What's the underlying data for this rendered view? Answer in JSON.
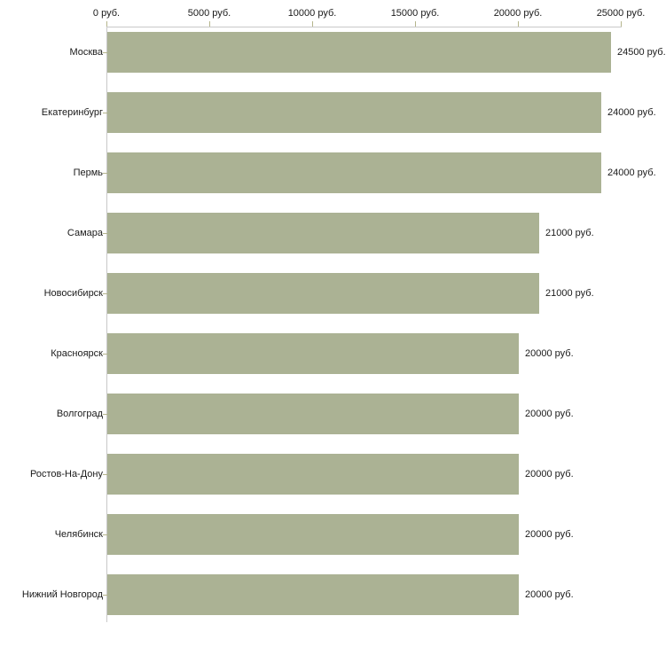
{
  "chart_data": {
    "type": "bar",
    "orientation": "horizontal",
    "title": "",
    "categories": [
      "Москва",
      "Екатеринбург",
      "Пермь",
      "Самара",
      "Новосибирск",
      "Красноярск",
      "Волгоград",
      "Ростов-На-Дону",
      "Челябинск",
      "Нижний Новгород"
    ],
    "values": [
      24500,
      24000,
      24000,
      21000,
      21000,
      20000,
      20000,
      20000,
      20000,
      20000
    ],
    "value_labels": [
      "24500 руб.",
      "24000 руб.",
      "24000 руб.",
      "21000 руб.",
      "21000 руб.",
      "20000 руб.",
      "20000 руб.",
      "20000 руб.",
      "20000 руб.",
      "20000 руб."
    ],
    "unit": "руб.",
    "x_axis": {
      "position": "top",
      "min": 0,
      "max": 25000,
      "ticks": [
        0,
        5000,
        10000,
        15000,
        20000,
        25000
      ],
      "tick_labels": [
        "0 руб.",
        "5000 руб.",
        "10000 руб.",
        "15000 руб.",
        "20000 руб.",
        "25000 руб."
      ]
    },
    "grid": false,
    "legend": "none",
    "colors": {
      "bar": "#abb294",
      "axis_line": "#c9c9c9",
      "tick": "#b5b58c",
      "text": "#1a1a1a",
      "background": "#ffffff"
    }
  }
}
